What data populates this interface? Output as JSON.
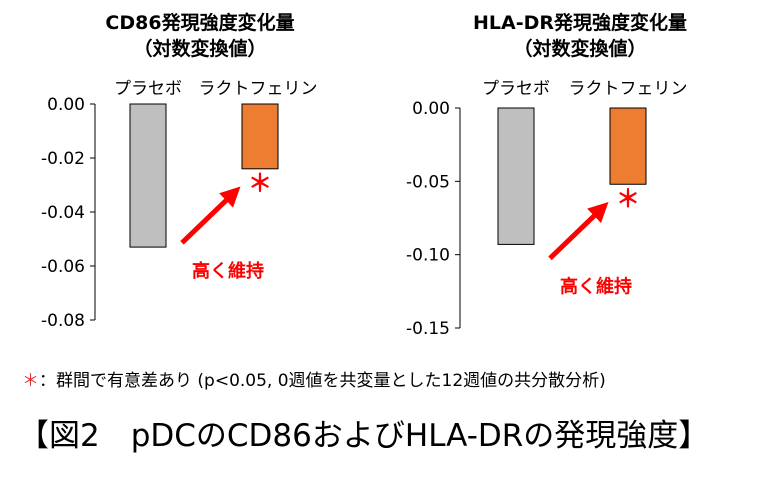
{
  "chart_data": [
    {
      "type": "bar",
      "title": "CD86発現強度変化量",
      "subtitle": "（対数変換値）",
      "categories": [
        "プラセボ",
        "ラクトフェリン"
      ],
      "values": [
        -0.053,
        -0.024
      ],
      "colors": [
        "#bfbfbf",
        "#ed7d31"
      ],
      "ylim": [
        -0.08,
        0.0
      ],
      "yticks": [
        "0.00",
        "-0.02",
        "-0.04",
        "-0.06",
        "-0.08"
      ],
      "significance_mark": "＊",
      "annotation": "高く維持"
    },
    {
      "type": "bar",
      "title": "HLA-DR発現強度変化量",
      "subtitle": "（対数変換値）",
      "categories": [
        "プラセボ",
        "ラクトフェリン"
      ],
      "values": [
        -0.093,
        -0.052
      ],
      "colors": [
        "#bfbfbf",
        "#ed7d31"
      ],
      "ylim": [
        -0.15,
        0.0
      ],
      "yticks": [
        "0.00",
        "-0.05",
        "-0.10",
        "-0.15"
      ],
      "significance_mark": "＊",
      "annotation": "高く維持"
    }
  ],
  "footnote": {
    "mark": "＊",
    "text": "：群間で有意差あり (p<0.05, 0週値を共変量とした12週値の共分散分析)"
  },
  "figure_caption": "【図2　pDCのCD86およびHLA-DRの発現強度】",
  "accent_color": "#ff0000"
}
